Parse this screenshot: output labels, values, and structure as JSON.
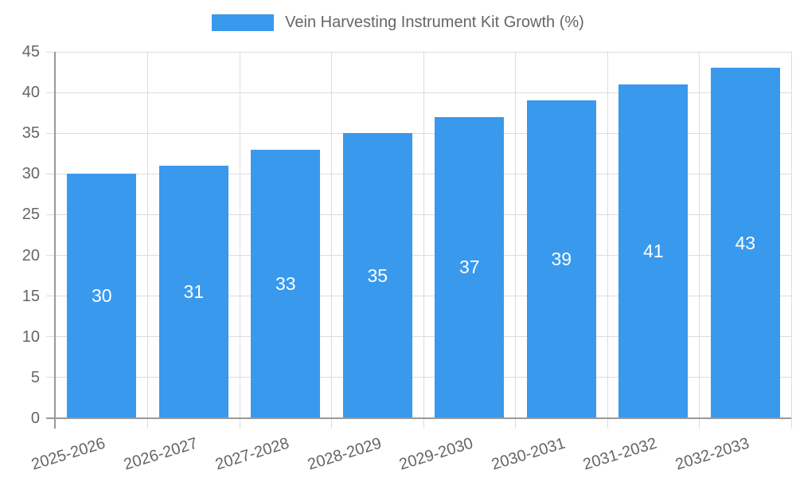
{
  "chart_data": {
    "type": "bar",
    "title": "Vein Harvesting Instrument Kit Growth (%)",
    "categories": [
      "2025-2026",
      "2026-2027",
      "2027-2028",
      "2028-2029",
      "2029-2030",
      "2030-2031",
      "2031-2032",
      "2032-2033"
    ],
    "values": [
      30,
      31,
      33,
      35,
      37,
      39,
      41,
      43
    ],
    "xlabel": "",
    "ylabel": "",
    "ylim": [
      0,
      45
    ],
    "yticks": [
      0,
      5,
      10,
      15,
      20,
      25,
      30,
      35,
      40,
      45
    ],
    "grid": true,
    "legend_position": "top",
    "x_label_rotation_deg": -17,
    "colors": {
      "bar": "#3999ED",
      "bar_label": "#FFFFFF",
      "grid": "#DDDDDD",
      "axis": "#999999",
      "tick_label": "#666666",
      "legend_text": "#666666",
      "background": "#FFFFFF"
    }
  }
}
